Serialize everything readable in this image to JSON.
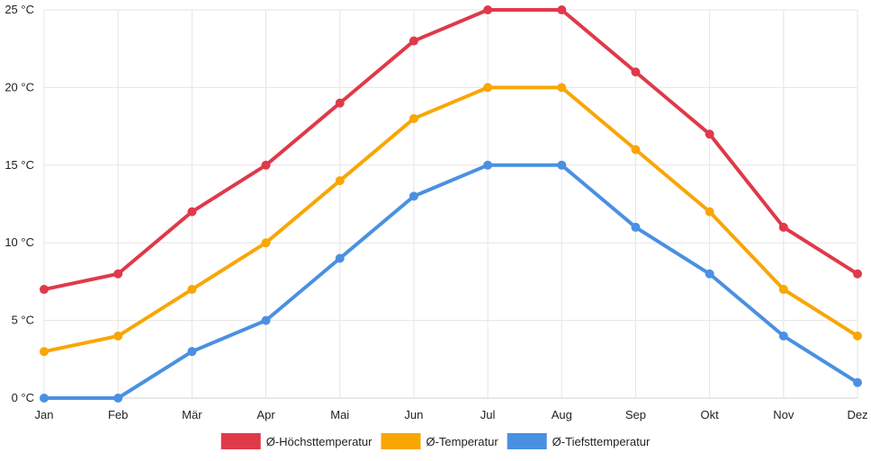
{
  "chart_data": {
    "type": "line",
    "categories": [
      "Jan",
      "Feb",
      "Mär",
      "Apr",
      "Mai",
      "Jun",
      "Jul",
      "Aug",
      "Sep",
      "Okt",
      "Nov",
      "Dez"
    ],
    "y_ticks": [
      "0 °C",
      "5 °C",
      "10 °C",
      "15 °C",
      "20 °C",
      "25 °C"
    ],
    "ylim": [
      0,
      25
    ],
    "grid": true,
    "legend_position": "bottom",
    "series": [
      {
        "name": "Ø-Höchsttemperatur",
        "color": "#e0394a",
        "values": [
          7,
          8,
          12,
          15,
          19,
          23,
          25,
          25,
          21,
          17,
          11,
          8
        ]
      },
      {
        "name": "Ø-Temperatur",
        "color": "#f9a602",
        "values": [
          3,
          4,
          7,
          10,
          14,
          18,
          20,
          20,
          16,
          12,
          7,
          4
        ]
      },
      {
        "name": "Ø-Tiefsttemperatur",
        "color": "#4a90e2",
        "values": [
          0,
          0,
          3,
          5,
          9,
          13,
          15,
          15,
          11,
          8,
          4,
          1
        ]
      }
    ]
  }
}
